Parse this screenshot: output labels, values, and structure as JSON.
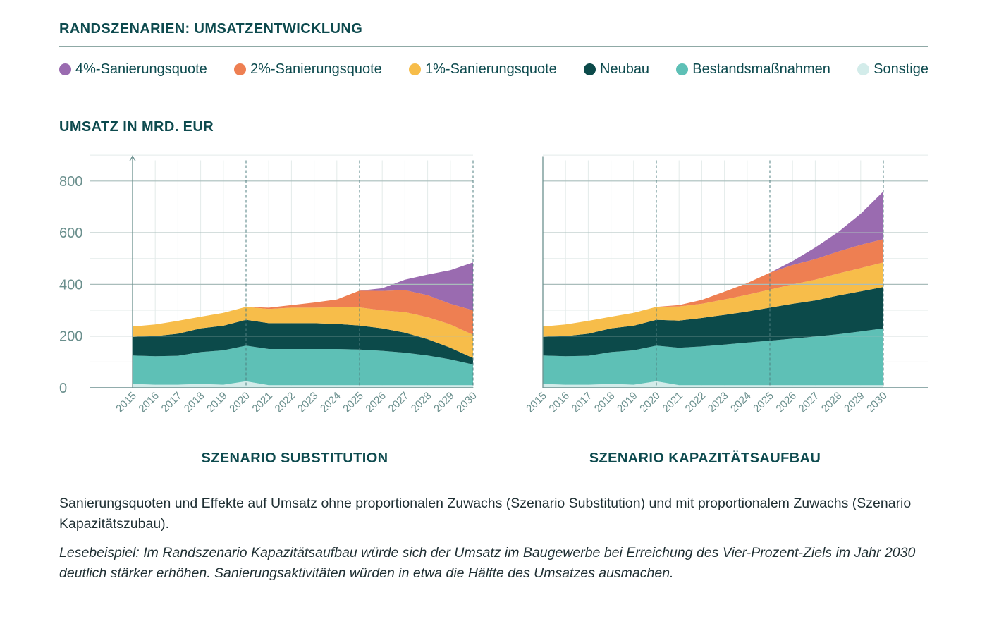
{
  "title": "RANDSZENARIEN: UMSATZENTWICKLUNG",
  "unit_label": "UMSATZ IN MRD. EUR",
  "legend": [
    {
      "label": "4%-Sanierungsquote",
      "color": "#9a6bb0"
    },
    {
      "label": "2%-Sanierungsquote",
      "color": "#ee7f52"
    },
    {
      "label": "1%-Sanierungsquote",
      "color": "#f7bd4a"
    },
    {
      "label": "Neubau",
      "color": "#0c4a4a"
    },
    {
      "label": "Bestandsmaßnahmen",
      "color": "#5ec0b6"
    },
    {
      "label": "Sonstige",
      "color": "#d3ecea"
    }
  ],
  "caption": "Sanierungsquoten und Effekte auf Umsatz ohne proportionalen Zuwachs (Szenario Substitution) und mit proportionalem Zuwachs (Szenario Kapazitätszubau).",
  "example": "Lesebeispiel: Im Randszenario Kapazitätsaufbau würde sich der Umsatz im Baugewerbe bei Erreichung des Vier-Prozent-Ziels im Jahr 2030 deutlich stärker erhöhen. Sanierungsaktivitäten würden in etwa die Hälfte des Umsatzes ausmachen.",
  "chart_data": [
    {
      "type": "area",
      "title": "SZENARIO SUBSTITUTION",
      "x": [
        2015,
        2016,
        2017,
        2018,
        2019,
        2020,
        2021,
        2022,
        2023,
        2024,
        2025,
        2026,
        2027,
        2028,
        2029,
        2030
      ],
      "ylim": [
        0,
        800
      ],
      "yticks": [
        0,
        200,
        400,
        600,
        800
      ],
      "stacking": "series are stacked in the order listed, bottom to top; values are layer thicknesses",
      "series": [
        {
          "name": "Sonstige",
          "values": [
            15,
            12,
            12,
            15,
            12,
            25,
            10,
            10,
            10,
            10,
            10,
            10,
            10,
            10,
            10,
            10
          ]
        },
        {
          "name": "Bestandsmaßnahmen",
          "values": [
            110,
            110,
            112,
            123,
            133,
            138,
            140,
            140,
            140,
            140,
            138,
            133,
            126,
            115,
            100,
            80
          ]
        },
        {
          "name": "Neubau",
          "values": [
            72,
            78,
            85,
            92,
            95,
            100,
            100,
            100,
            100,
            97,
            93,
            87,
            77,
            63,
            45,
            25
          ]
        },
        {
          "name": "1%-Sanierungsquote",
          "values": [
            40,
            45,
            50,
            45,
            50,
            50,
            55,
            60,
            60,
            65,
            70,
            70,
            80,
            85,
            90,
            90
          ]
        },
        {
          "name": "2%-Sanierungsquote",
          "values": [
            0,
            0,
            0,
            0,
            0,
            0,
            5,
            10,
            20,
            30,
            65,
            75,
            85,
            85,
            80,
            95
          ]
        },
        {
          "name": "4%-Sanierungsquote",
          "values": [
            0,
            0,
            0,
            0,
            0,
            0,
            0,
            0,
            0,
            0,
            0,
            10,
            40,
            80,
            130,
            185
          ]
        }
      ]
    },
    {
      "type": "area",
      "title": "SZENARIO KAPAZITÄTSAUFBAU",
      "x": [
        2015,
        2016,
        2017,
        2018,
        2019,
        2020,
        2021,
        2022,
        2023,
        2024,
        2025,
        2026,
        2027,
        2028,
        2029,
        2030
      ],
      "ylim": [
        0,
        800
      ],
      "yticks": [
        0,
        200,
        400,
        600,
        800
      ],
      "stacking": "series are stacked in the order listed, bottom to top; values are layer thicknesses",
      "series": [
        {
          "name": "Sonstige",
          "values": [
            15,
            12,
            12,
            15,
            12,
            25,
            10,
            10,
            10,
            10,
            10,
            10,
            10,
            10,
            10,
            10
          ]
        },
        {
          "name": "Bestandsmaßnahmen",
          "values": [
            110,
            110,
            112,
            123,
            133,
            138,
            145,
            150,
            157,
            165,
            172,
            180,
            188,
            197,
            208,
            220
          ]
        },
        {
          "name": "Neubau",
          "values": [
            72,
            78,
            85,
            92,
            95,
            100,
            105,
            110,
            115,
            120,
            128,
            135,
            140,
            150,
            155,
            160
          ]
        },
        {
          "name": "1%-Sanierungsquote",
          "values": [
            40,
            45,
            50,
            45,
            50,
            50,
            55,
            55,
            60,
            65,
            70,
            75,
            80,
            85,
            90,
            95
          ]
        },
        {
          "name": "2%-Sanierungsquote",
          "values": [
            0,
            0,
            0,
            0,
            0,
            0,
            5,
            15,
            30,
            45,
            65,
            75,
            80,
            85,
            90,
            90
          ]
        },
        {
          "name": "4%-Sanierungsquote",
          "values": [
            0,
            0,
            0,
            0,
            0,
            0,
            0,
            0,
            0,
            0,
            0,
            15,
            45,
            75,
            120,
            185
          ]
        }
      ]
    }
  ]
}
